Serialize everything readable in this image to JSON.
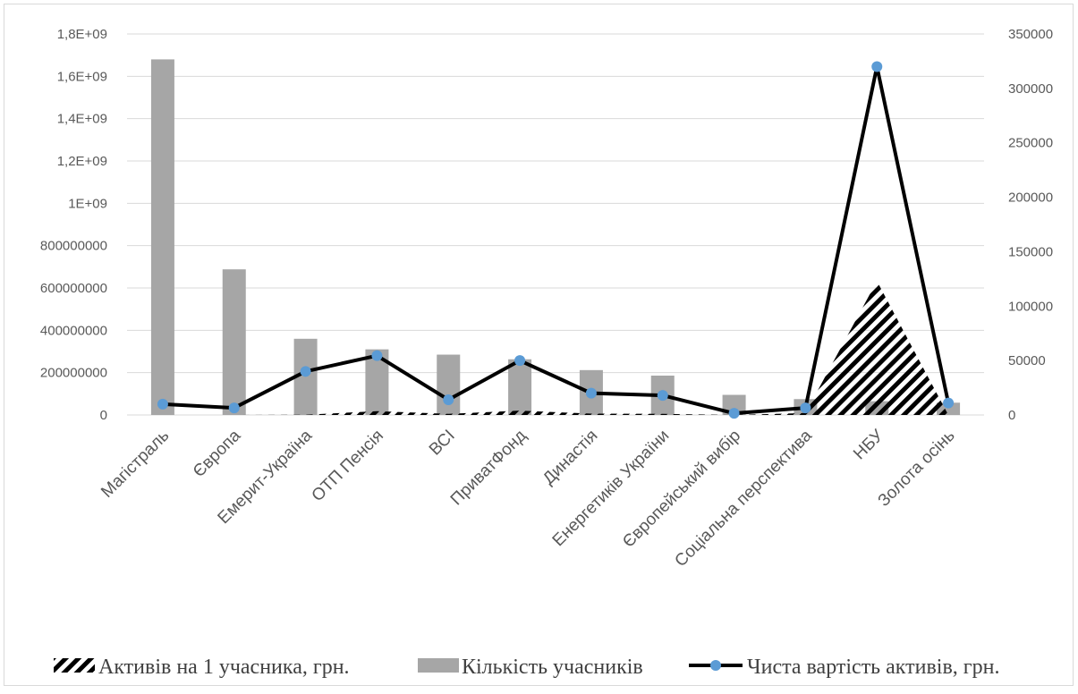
{
  "chart_data": {
    "type": "bar",
    "categories": [
      "Магістраль",
      "Європа",
      "Емерит-Україна",
      "ОТП Пенсія",
      "ВСІ",
      "ПриватФонд",
      "Династія",
      "Енергетиків України",
      "Європейський вибір",
      "Соціальна перспектива",
      "НБУ",
      "Золота осінь"
    ],
    "y_left": {
      "ylim": [
        0,
        1800000000
      ],
      "ticks": [
        0,
        200000000,
        400000000,
        600000000,
        800000000,
        1000000000,
        1200000000,
        1400000000,
        1600000000,
        1800000000
      ],
      "tick_labels": [
        "0",
        "200000000",
        "400000000",
        "600000000",
        "800000000",
        "1E+09",
        "1,2E+09",
        "1,4E+09",
        "1,6E+09",
        "1,8E+09"
      ]
    },
    "y_right": {
      "ylim": [
        0,
        350000
      ],
      "ticks": [
        0,
        50000,
        100000,
        150000,
        200000,
        250000,
        300000,
        350000
      ],
      "tick_labels": [
        "0",
        "50000",
        "100000",
        "150000",
        "200000",
        "250000",
        "300000",
        "350000"
      ]
    },
    "grid": true,
    "legend_position": "bottom",
    "series": [
      {
        "name": "Активів на 1 учасника, грн.",
        "type": "area",
        "axis": "right",
        "pattern": "diagonal-hatch",
        "color": "#000000",
        "values": [
          0,
          0,
          200,
          3500,
          1000,
          4000,
          1200,
          1000,
          0,
          1800,
          123000,
          0
        ]
      },
      {
        "name": "Кількість учасників",
        "type": "bar",
        "axis": "left",
        "color": "#a6a6a6",
        "values": [
          1680000000,
          688000000,
          360000000,
          310000000,
          285000000,
          263000000,
          212000000,
          186000000,
          95000000,
          75000000,
          65000000,
          58000000
        ]
      },
      {
        "name": "Чиста вартість активів, грн.",
        "type": "line",
        "axis": "right",
        "color": "#000000",
        "marker_color": "#5b9bd5",
        "values": [
          10000,
          6500,
          40000,
          54500,
          14000,
          50000,
          20000,
          18000,
          1500,
          6500,
          320000,
          11000
        ]
      }
    ]
  }
}
